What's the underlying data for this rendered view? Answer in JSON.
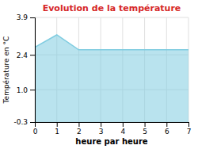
{
  "chart_data": {
    "type": "area",
    "title": "Evolution de la température",
    "x_label": "heure par heure",
    "y_label": "Température en °C",
    "x": [
      0,
      1,
      2,
      3,
      4,
      5,
      6,
      7
    ],
    "values": [
      2.7,
      3.2,
      2.6,
      2.6,
      2.6,
      2.6,
      2.6,
      2.6
    ],
    "color": "#7fcce0",
    "xlim": [
      0,
      7
    ],
    "ylim": [
      -0.3,
      3.9
    ],
    "xticks": [
      0,
      1,
      2,
      3,
      4,
      5,
      6,
      7
    ],
    "yticks": [
      -0.3,
      {
        "value": 1.0,
        "label": "1.0"
      },
      2.4,
      3.9
    ],
    "grid": true
  }
}
